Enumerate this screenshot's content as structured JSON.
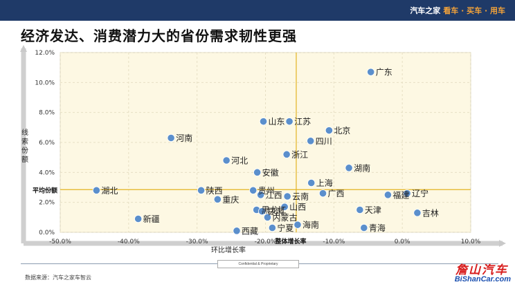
{
  "header": {
    "brand": "汽车之家",
    "tagline": "看车 · 买车 · 用车"
  },
  "title": "经济发达、消费潜力大的省份需求韧性更强",
  "footer": {
    "confidential": "Confidential & Proprietary",
    "source": "数据来源：汽车之家车智云"
  },
  "watermark": {
    "cn": "詹山汽车",
    "en": "BiShanCar.com"
  },
  "chart_data": {
    "type": "scatter",
    "xlabel": "环比增长率",
    "ylabel": "线索份额",
    "xlim": [
      -0.5,
      0.1
    ],
    "ylim": [
      0,
      0.12
    ],
    "x_ticks": [
      -0.5,
      -0.4,
      -0.3,
      -0.2,
      -0.1,
      0.0,
      0.1
    ],
    "x_tick_labels": [
      "-50.0%",
      "-40.0%",
      "-30.0%",
      "-20.0%",
      "-10.0%",
      "0.0%",
      "10.0%"
    ],
    "y_ticks": [
      0,
      0.02,
      0.04,
      0.06,
      0.08,
      0.1,
      0.12
    ],
    "y_tick_labels": [
      "0.0%",
      "2.0%",
      "4.0%",
      "6.0%",
      "8.0%",
      "10.0%",
      "12.0%"
    ],
    "reference_lines": {
      "avg_share_label": "平均份额",
      "avg_share_value": 0.0285,
      "overall_growth_label": "整体增长率",
      "overall_growth_value": -0.155
    },
    "colors": {
      "point": "#5b8fcc",
      "reference_line": "#e3b322",
      "plot_background": "#fdf8e3"
    },
    "points": [
      {
        "name": "广东",
        "x": -0.046,
        "y": 0.107
      },
      {
        "name": "山东",
        "x": -0.203,
        "y": 0.074
      },
      {
        "name": "江苏",
        "x": -0.165,
        "y": 0.074
      },
      {
        "name": "北京",
        "x": -0.107,
        "y": 0.068
      },
      {
        "name": "河南",
        "x": -0.338,
        "y": 0.063
      },
      {
        "name": "四川",
        "x": -0.134,
        "y": 0.061
      },
      {
        "name": "浙江",
        "x": -0.169,
        "y": 0.052
      },
      {
        "name": "河北",
        "x": -0.257,
        "y": 0.048
      },
      {
        "name": "湖南",
        "x": -0.078,
        "y": 0.043
      },
      {
        "name": "安徽",
        "x": -0.212,
        "y": 0.04
      },
      {
        "name": "贵州",
        "x": -0.218,
        "y": 0.028
      },
      {
        "name": "上海",
        "x": -0.133,
        "y": 0.033
      },
      {
        "name": "湖北",
        "x": -0.447,
        "y": 0.028
      },
      {
        "name": "陕西",
        "x": -0.294,
        "y": 0.028
      },
      {
        "name": "江西",
        "x": -0.207,
        "y": 0.025
      },
      {
        "name": "广西",
        "x": -0.116,
        "y": 0.026
      },
      {
        "name": "云南",
        "x": -0.168,
        "y": 0.024
      },
      {
        "name": "辽宁",
        "x": 0.007,
        "y": 0.026
      },
      {
        "name": "福建",
        "x": -0.021,
        "y": 0.025
      },
      {
        "name": "重庆",
        "x": -0.27,
        "y": 0.022
      },
      {
        "name": "山西",
        "x": -0.172,
        "y": 0.017
      },
      {
        "name": "黑龙江",
        "x": -0.213,
        "y": 0.015
      },
      {
        "name": "天津",
        "x": -0.062,
        "y": 0.015
      },
      {
        "name": "甘肃",
        "x": -0.205,
        "y": 0.014
      },
      {
        "name": "吉林",
        "x": 0.022,
        "y": 0.013
      },
      {
        "name": "内蒙古",
        "x": -0.197,
        "y": 0.01
      },
      {
        "name": "新疆",
        "x": -0.386,
        "y": 0.009
      },
      {
        "name": "宁夏",
        "x": -0.19,
        "y": 0.003
      },
      {
        "name": "海南",
        "x": -0.153,
        "y": 0.005
      },
      {
        "name": "青海",
        "x": -0.056,
        "y": 0.003
      },
      {
        "name": "西藏",
        "x": -0.242,
        "y": 0.001
      }
    ]
  }
}
